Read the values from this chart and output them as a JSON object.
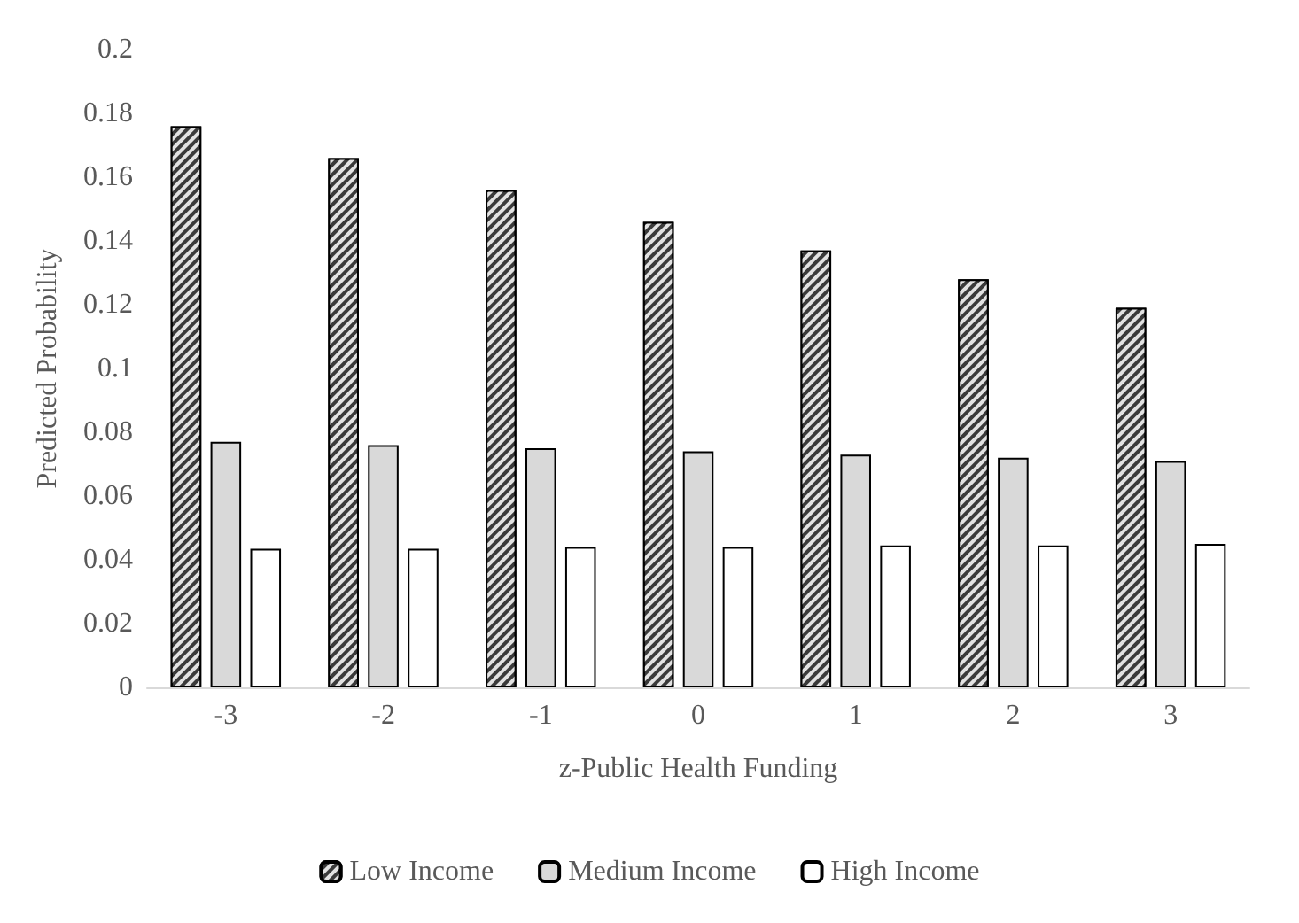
{
  "chart_data": {
    "type": "bar",
    "xlabel": "z-Public Health Funding",
    "ylabel": "Predicted Probability",
    "categories": [
      "-3",
      "-2",
      "-1",
      "0",
      "1",
      "2",
      "3"
    ],
    "series": [
      {
        "name": "Low Income",
        "color": "#3a3a3a",
        "values": [
          0.176,
          0.166,
          0.156,
          0.146,
          0.137,
          0.128,
          0.119
        ]
      },
      {
        "name": "Medium Income",
        "color": "#d9d9d9",
        "values": [
          0.077,
          0.076,
          0.075,
          0.074,
          0.073,
          0.072,
          0.071
        ]
      },
      {
        "name": "High Income",
        "color": "#ffffff",
        "values": [
          0.0435,
          0.0435,
          0.044,
          0.044,
          0.0445,
          0.0445,
          0.045
        ]
      }
    ],
    "ylim": [
      0,
      0.2
    ],
    "yticks": [
      0,
      0.02,
      0.04,
      0.06,
      0.08,
      0.1,
      0.12,
      0.14,
      0.16,
      0.18,
      0.2
    ],
    "grid": false,
    "legend": "bottom"
  }
}
